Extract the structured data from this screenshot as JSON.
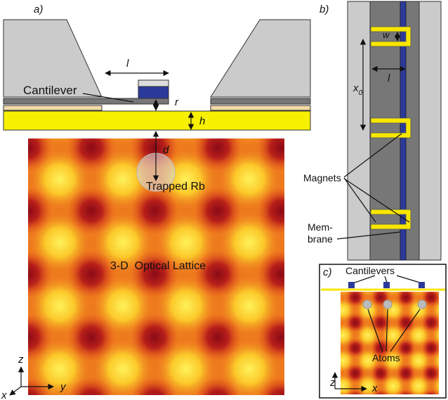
{
  "panel_a": {
    "label": "a)",
    "length_label": "l",
    "cantilever": "Cantilever",
    "r_label": "r",
    "h_label": "h",
    "d_label": "d",
    "trapped": "Trapped Rb",
    "lattice": "3-D  Optical Lattice",
    "axes": {
      "z": "z",
      "y": "y",
      "x": "x"
    }
  },
  "panel_b": {
    "label": "b)",
    "w_label": "w",
    "l_label": "l",
    "x0": {
      "main": "x",
      "sub": "0"
    },
    "magnets": "Magnets",
    "membrane": [
      "Mem-",
      "brane"
    ]
  },
  "panel_c": {
    "label": "c)",
    "cantilevers": "Cantilevers",
    "atoms": "Atoms",
    "axes": {
      "z": "z",
      "x": "x"
    }
  }
}
